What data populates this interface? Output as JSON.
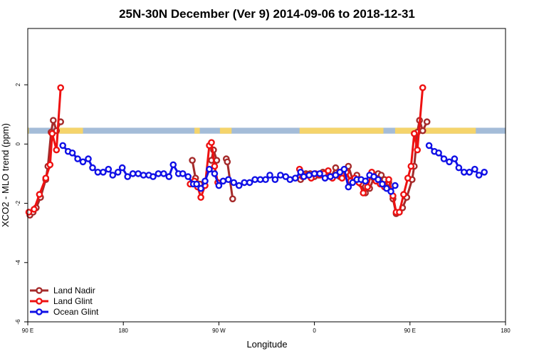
{
  "chart_data": {
    "type": "line",
    "title": "25N-30N December (Ver 9)   2014-09-06 to 2018-12-31",
    "xlabel": "Longitude",
    "ylabel": "XCO2 - MLO trend (ppm)",
    "xlim": [
      0,
      450
    ],
    "ylim": [
      -6,
      3.9
    ],
    "x_ticks": [
      {
        "value": 0,
        "label": "90 E"
      },
      {
        "value": 90,
        "label": "180"
      },
      {
        "value": 180,
        "label": "90 W"
      },
      {
        "value": 270,
        "label": "0"
      },
      {
        "value": 360,
        "label": "90 E"
      },
      {
        "value": 450,
        "label": "180"
      }
    ],
    "y_ticks": [
      {
        "value": -6,
        "label": "-6"
      },
      {
        "value": -4,
        "label": "-4"
      },
      {
        "value": -2,
        "label": "-2"
      },
      {
        "value": 0,
        "label": "0"
      },
      {
        "value": 2,
        "label": "2"
      }
    ],
    "grid": false,
    "legend_position": "bottom-left",
    "surface_band": {
      "y_range": [
        0.35,
        0.55
      ],
      "ocean_color": "#a4bcd8",
      "land_color": "#f5d46b",
      "land_segments": [
        [
          0,
          1
        ],
        [
          26,
          52
        ],
        [
          157,
          162
        ],
        [
          181,
          192
        ],
        [
          256,
          335
        ],
        [
          346,
          422
        ]
      ]
    },
    "series": [
      {
        "name": "Land Nadir",
        "color": "#a52a2a",
        "segments": [
          [
            [
              2,
              -2.4
            ],
            [
              5,
              -2.3
            ],
            [
              8,
              -2.15
            ],
            [
              12,
              -1.8
            ],
            [
              17,
              -1.2
            ],
            [
              19,
              -0.75
            ],
            [
              22,
              0.4
            ],
            [
              24,
              0.8
            ],
            [
              27,
              0.45
            ],
            [
              31,
              0.75
            ]
          ],
          [
            [
              155,
              -0.55
            ],
            [
              158,
              -1.15
            ],
            [
              162,
              -1.35
            ]
          ],
          [
            [
              173,
              -0.55
            ],
            [
              175,
              -0.2
            ],
            [
              178,
              -0.55
            ]
          ],
          [
            [
              187,
              -0.5
            ],
            [
              188,
              -0.6
            ],
            [
              193,
              -1.85
            ]
          ],
          [
            [
              257,
              -1.2
            ],
            [
              259,
              -1.1
            ],
            [
              262,
              -1.0
            ],
            [
              266,
              -1.0
            ],
            [
              270,
              -1.1
            ],
            [
              274,
              -1.05
            ],
            [
              278,
              -0.95
            ],
            [
              282,
              -0.95
            ],
            [
              286,
              -1.1
            ],
            [
              290,
              -0.8
            ],
            [
              294,
              -1.1
            ],
            [
              298,
              -1.05
            ],
            [
              302,
              -0.75
            ],
            [
              306,
              -1.2
            ],
            [
              310,
              -1.05
            ],
            [
              314,
              -1.35
            ],
            [
              318,
              -1.65
            ],
            [
              322,
              -1.5
            ],
            [
              326,
              -1.15
            ],
            [
              330,
              -1.0
            ],
            [
              333,
              -1.05
            ],
            [
              336,
              -1.2
            ],
            [
              340,
              -1.3
            ],
            [
              344,
              -1.85
            ],
            [
              347,
              -2.35
            ],
            [
              350,
              -2.3
            ],
            [
              353,
              -2.15
            ],
            [
              357,
              -1.8
            ],
            [
              362,
              -1.2
            ],
            [
              364,
              -0.75
            ],
            [
              367,
              0.4
            ],
            [
              369,
              0.8
            ],
            [
              372,
              0.45
            ],
            [
              376,
              0.75
            ]
          ]
        ]
      },
      {
        "name": "Land Glint",
        "color": "#ee1111",
        "segments": [
          [
            [
              1,
              -2.3
            ],
            [
              6,
              -2.2
            ],
            [
              11,
              -1.7
            ],
            [
              17,
              -1.15
            ],
            [
              21,
              -0.7
            ],
            [
              23,
              0.35
            ],
            [
              27,
              -0.2
            ],
            [
              31,
              1.9
            ]
          ],
          [
            [
              153,
              -1.35
            ],
            [
              157,
              -1.25
            ],
            [
              160,
              -1.45
            ],
            [
              163,
              -1.8
            ],
            [
              167,
              -1.4
            ],
            [
              171,
              -0.05
            ],
            [
              173,
              0.05
            ],
            [
              176,
              -0.75
            ],
            [
              179,
              -1.3
            ]
          ],
          [
            [
              256,
              -0.85
            ],
            [
              259,
              -1.1
            ],
            [
              263,
              -1.05
            ],
            [
              267,
              -1.15
            ],
            [
              271,
              -1.0
            ],
            [
              275,
              -1.05
            ],
            [
              279,
              -1.0
            ],
            [
              283,
              -0.9
            ],
            [
              287,
              -1.15
            ],
            [
              291,
              -1.05
            ],
            [
              296,
              -1.15
            ],
            [
              300,
              -0.95
            ],
            [
              304,
              -1.25
            ],
            [
              308,
              -1.15
            ],
            [
              312,
              -1.3
            ],
            [
              316,
              -1.65
            ],
            [
              320,
              -1.45
            ],
            [
              324,
              -0.95
            ],
            [
              328,
              -1.25
            ],
            [
              332,
              -1.35
            ],
            [
              336,
              -1.45
            ],
            [
              340,
              -1.2
            ],
            [
              344,
              -1.75
            ],
            [
              347,
              -2.3
            ],
            [
              350,
              -2.3
            ],
            [
              354,
              -1.7
            ],
            [
              358,
              -1.15
            ],
            [
              361,
              -0.75
            ],
            [
              364,
              0.35
            ],
            [
              367,
              -0.2
            ],
            [
              372,
              1.9
            ]
          ]
        ]
      },
      {
        "name": "Ocean Glint",
        "color": "#1010e6",
        "segments": [
          [
            [
              33,
              -0.05
            ],
            [
              38,
              -0.25
            ],
            [
              42,
              -0.3
            ],
            [
              47,
              -0.5
            ],
            [
              52,
              -0.6
            ],
            [
              57,
              -0.5
            ],
            [
              61,
              -0.8
            ],
            [
              66,
              -0.95
            ],
            [
              71,
              -0.95
            ],
            [
              76,
              -0.85
            ],
            [
              80,
              -1.05
            ],
            [
              85,
              -0.95
            ],
            [
              89,
              -0.8
            ],
            [
              94,
              -1.1
            ],
            [
              99,
              -1.0
            ],
            [
              104,
              -1.0
            ],
            [
              109,
              -1.05
            ],
            [
              114,
              -1.05
            ],
            [
              118,
              -1.1
            ],
            [
              123,
              -1.0
            ],
            [
              128,
              -1.0
            ],
            [
              133,
              -1.1
            ],
            [
              137,
              -0.7
            ],
            [
              142,
              -1.0
            ],
            [
              146,
              -1.0
            ],
            [
              151,
              -1.1
            ],
            [
              156,
              -1.35
            ],
            [
              159,
              -1.35
            ],
            [
              163,
              -1.5
            ],
            [
              167,
              -1.25
            ],
            [
              171,
              -0.85
            ],
            [
              176,
              -1.0
            ],
            [
              180,
              -1.4
            ],
            [
              184,
              -1.25
            ],
            [
              189,
              -1.2
            ],
            [
              194,
              -1.3
            ],
            [
              199,
              -1.4
            ],
            [
              204,
              -1.3
            ],
            [
              209,
              -1.3
            ],
            [
              214,
              -1.2
            ],
            [
              219,
              -1.2
            ],
            [
              224,
              -1.2
            ],
            [
              228,
              -1.05
            ],
            [
              233,
              -1.2
            ],
            [
              238,
              -1.05
            ],
            [
              243,
              -1.1
            ],
            [
              247,
              -1.2
            ],
            [
              252,
              -1.15
            ],
            [
              257,
              -0.95
            ],
            [
              260,
              -1.1
            ],
            [
              265,
              -1.05
            ],
            [
              270,
              -1.0
            ],
            [
              275,
              -1.0
            ],
            [
              280,
              -1.15
            ],
            [
              285,
              -1.1
            ],
            [
              290,
              -1.05
            ],
            [
              294,
              -0.95
            ],
            [
              298,
              -0.85
            ],
            [
              302,
              -1.45
            ],
            [
              306,
              -1.3
            ],
            [
              310,
              -1.2
            ],
            [
              314,
              -1.2
            ],
            [
              318,
              -1.25
            ],
            [
              322,
              -1.05
            ],
            [
              326,
              -1.1
            ],
            [
              330,
              -1.2
            ],
            [
              334,
              -1.35
            ],
            [
              338,
              -1.5
            ],
            [
              342,
              -1.6
            ],
            [
              346,
              -1.4
            ]
          ],
          [
            [
              378,
              -0.05
            ],
            [
              383,
              -0.25
            ],
            [
              387,
              -0.3
            ],
            [
              392,
              -0.5
            ],
            [
              397,
              -0.6
            ],
            [
              402,
              -0.5
            ],
            [
              406,
              -0.8
            ],
            [
              411,
              -0.95
            ],
            [
              416,
              -0.95
            ],
            [
              421,
              -0.85
            ],
            [
              425,
              -1.05
            ],
            [
              430,
              -0.95
            ]
          ]
        ]
      }
    ]
  }
}
